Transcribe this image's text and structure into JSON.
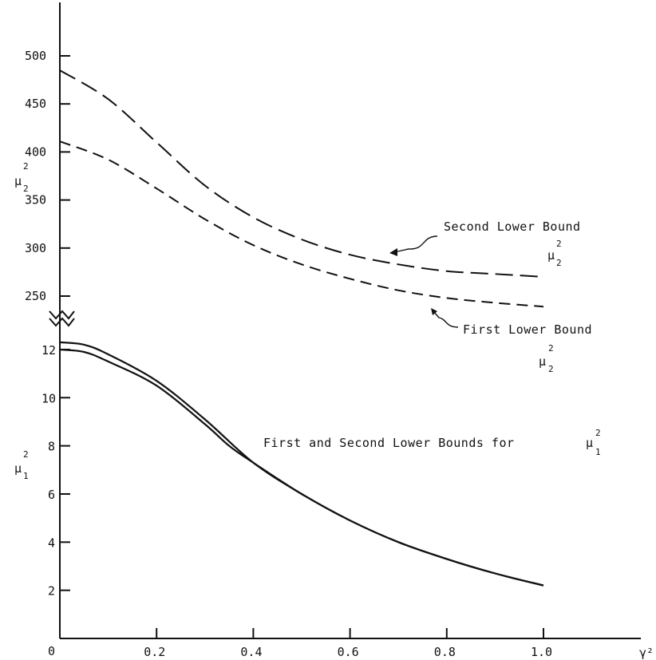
{
  "chart_data": {
    "type": "line",
    "title": "",
    "x_axis": {
      "label": "γ²",
      "range": [
        0,
        1.2
      ],
      "ticks": [
        0.2,
        0.4,
        0.6,
        0.8,
        1.0
      ],
      "tick_labels": [
        "0.2",
        "0.4",
        "0.6",
        "0.8",
        "1.0"
      ],
      "origin_label": "0"
    },
    "upper_axis": {
      "label": "μ",
      "label_sub": "2",
      "label_sup": "2",
      "range": [
        250,
        550
      ],
      "ticks": [
        250,
        300,
        350,
        400,
        450,
        500
      ],
      "tick_labels": [
        "250",
        "300",
        "350",
        "400",
        "450",
        "500"
      ]
    },
    "lower_axis": {
      "label": "μ",
      "label_sub": "1",
      "label_sup": "2",
      "range": [
        0,
        13
      ],
      "ticks": [
        2,
        4,
        6,
        8,
        10,
        12
      ],
      "tick_labels": [
        "2",
        "4",
        "6",
        "8",
        "10",
        "12"
      ]
    },
    "series": [
      {
        "axis": "upper",
        "style": "long-dash",
        "points": [
          [
            0,
            485
          ],
          [
            0.1,
            455
          ],
          [
            0.2,
            410
          ],
          [
            0.3,
            365
          ],
          [
            0.4,
            332
          ],
          [
            0.5,
            309
          ],
          [
            0.6,
            293
          ],
          [
            0.7,
            283
          ],
          [
            0.8,
            276
          ],
          [
            0.9,
            273
          ],
          [
            1.0,
            270
          ]
        ]
      },
      {
        "axis": "upper",
        "style": "dash",
        "points": [
          [
            0,
            411
          ],
          [
            0.1,
            392
          ],
          [
            0.2,
            362
          ],
          [
            0.3,
            330
          ],
          [
            0.4,
            303
          ],
          [
            0.5,
            283
          ],
          [
            0.6,
            268
          ],
          [
            0.7,
            256
          ],
          [
            0.8,
            248
          ],
          [
            0.9,
            243
          ],
          [
            1.0,
            239
          ]
        ]
      },
      {
        "axis": "lower",
        "style": "solid",
        "points": [
          [
            0,
            12.3
          ],
          [
            0.05,
            12.2
          ],
          [
            0.1,
            11.8
          ],
          [
            0.2,
            10.7
          ],
          [
            0.3,
            9.1
          ],
          [
            0.4,
            7.3
          ],
          [
            0.5,
            6.0
          ],
          [
            0.6,
            4.9
          ],
          [
            0.7,
            4.0
          ],
          [
            0.8,
            3.3
          ],
          [
            0.9,
            2.7
          ],
          [
            1.0,
            2.2
          ]
        ]
      },
      {
        "axis": "lower",
        "style": "solid",
        "points": [
          [
            0,
            12.0
          ],
          [
            0.05,
            11.9
          ],
          [
            0.1,
            11.5
          ],
          [
            0.2,
            10.5
          ],
          [
            0.3,
            8.9
          ],
          [
            0.35,
            8.0
          ],
          [
            0.4,
            7.3
          ],
          [
            0.5,
            6.0
          ],
          [
            0.6,
            4.9
          ],
          [
            0.7,
            4.0
          ],
          [
            0.8,
            3.3
          ],
          [
            0.9,
            2.7
          ],
          [
            1.0,
            2.2
          ]
        ]
      }
    ],
    "annotations": {
      "second_lower_bound": {
        "text": "Second Lower Bound",
        "symbol": "μ",
        "sub": "2",
        "sup": "2"
      },
      "first_lower_bound": {
        "text": "First Lower Bound",
        "symbol": "μ",
        "sub": "2",
        "sup": "2"
      },
      "lower_bounds_mu1": {
        "text": "First and Second Lower Bounds for",
        "symbol": "μ",
        "sub": "1",
        "sup": "2"
      }
    }
  }
}
